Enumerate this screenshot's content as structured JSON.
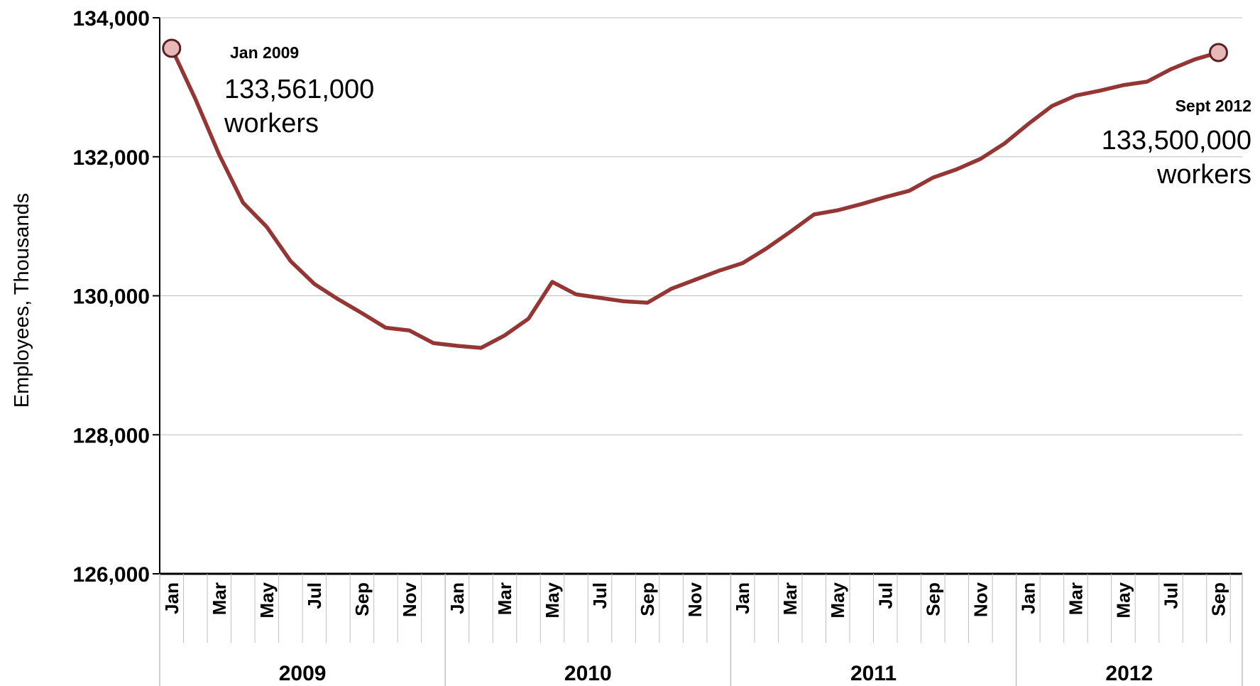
{
  "chart_data": {
    "type": "line",
    "title": "",
    "xlabel": "",
    "ylabel": "Employees, Thousands",
    "ylim": [
      126000,
      134000
    ],
    "yticks": [
      126000,
      128000,
      130000,
      132000,
      134000
    ],
    "ytick_labels": [
      "126,000",
      "128,000",
      "130,000",
      "132,000",
      "134,000"
    ],
    "grid": true,
    "legend": "none",
    "line_color": "#943634",
    "marker_fill": "#e6b9b8",
    "x": [
      "2009-01",
      "2009-02",
      "2009-03",
      "2009-04",
      "2009-05",
      "2009-06",
      "2009-07",
      "2009-08",
      "2009-09",
      "2009-10",
      "2009-11",
      "2009-12",
      "2010-01",
      "2010-02",
      "2010-03",
      "2010-04",
      "2010-05",
      "2010-06",
      "2010-07",
      "2010-08",
      "2010-09",
      "2010-10",
      "2010-11",
      "2010-12",
      "2011-01",
      "2011-02",
      "2011-03",
      "2011-04",
      "2011-05",
      "2011-06",
      "2011-07",
      "2011-08",
      "2011-09",
      "2011-10",
      "2011-11",
      "2011-12",
      "2012-01",
      "2012-02",
      "2012-03",
      "2012-04",
      "2012-05",
      "2012-06",
      "2012-07",
      "2012-08",
      "2012-09"
    ],
    "month_labels": [
      "Jan",
      "",
      "Mar",
      "",
      "May",
      "",
      "Jul",
      "",
      "Sep",
      "",
      "Nov",
      "",
      "Jan",
      "",
      "Mar",
      "",
      "May",
      "",
      "Jul",
      "",
      "Sep",
      "",
      "Nov",
      "",
      "Jan",
      "",
      "Mar",
      "",
      "May",
      "",
      "Jul",
      "",
      "Sep",
      "",
      "Nov",
      "",
      "Jan",
      "",
      "Mar",
      "",
      "May",
      "",
      "Jul",
      "",
      "Sep"
    ],
    "year_groups": [
      {
        "label": "2009",
        "start": 0,
        "end": 11
      },
      {
        "label": "2010",
        "start": 12,
        "end": 23
      },
      {
        "label": "2011",
        "start": 24,
        "end": 35
      },
      {
        "label": "2012",
        "start": 36,
        "end": 44
      }
    ],
    "series": [
      {
        "values": [
          133561,
          132830,
          132030,
          131340,
          130990,
          130500,
          130170,
          129950,
          129750,
          129540,
          129500,
          129320,
          129280,
          129250,
          129430,
          129670,
          130200,
          130020,
          129970,
          129920,
          129900,
          130100,
          130230,
          130360,
          130470,
          130680,
          130920,
          131170,
          131230,
          131320,
          131420,
          131510,
          131700,
          131820,
          131970,
          132190,
          132470,
          132730,
          132880,
          132950,
          133030,
          133080,
          133260,
          133400,
          133500
        ]
      }
    ],
    "annotations": [
      {
        "index": 0,
        "date": "Jan 2009",
        "value": "133,561,000",
        "unit": "workers"
      },
      {
        "index": 44,
        "date": "Sept 2012",
        "value": "133,500,000",
        "unit": "workers"
      }
    ]
  }
}
